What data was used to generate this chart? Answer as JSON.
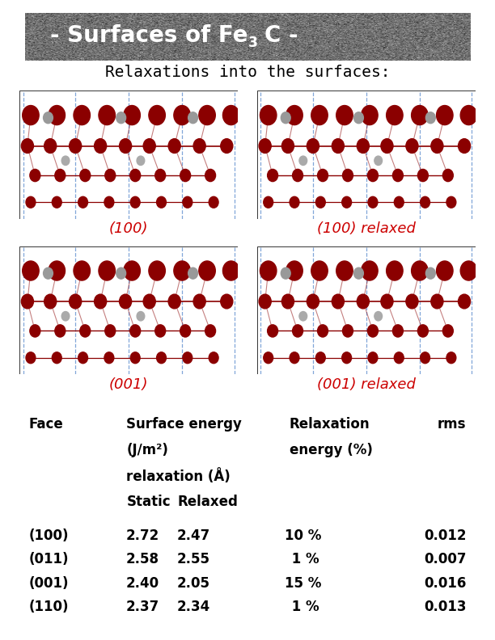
{
  "title_part1": "- Surfaces of Fe",
  "title_sub": "3",
  "title_part2": "C -",
  "subtitle": "Relaxations into the surfaces:",
  "title_bg_color": "#6e748a",
  "page_bg_color": "#ffffff",
  "table_bg_color": "#d4d4d4",
  "image_labels": [
    {
      "text": "(100)",
      "color": "#cc0000"
    },
    {
      "text": "(100) relaxed",
      "color": "#cc0000"
    },
    {
      "text": "(001)",
      "color": "#cc0000"
    },
    {
      "text": "(001) relaxed",
      "color": "#cc0000"
    }
  ],
  "label_fontsize": 13,
  "title_fontsize": 20,
  "subtitle_fontsize": 14,
  "table_fontsize": 12,
  "table_rows": [
    [
      "(100)",
      "2.72",
      "2.47",
      "10 %",
      "0.012"
    ],
    [
      "(011)",
      "2.58",
      "2.55",
      " 1 %",
      "0.007"
    ],
    [
      "(001)",
      "2.40",
      "2.05",
      "15 %",
      "0.016"
    ],
    [
      "(110)",
      "2.37",
      "2.34",
      " 1 %",
      "0.013"
    ]
  ]
}
